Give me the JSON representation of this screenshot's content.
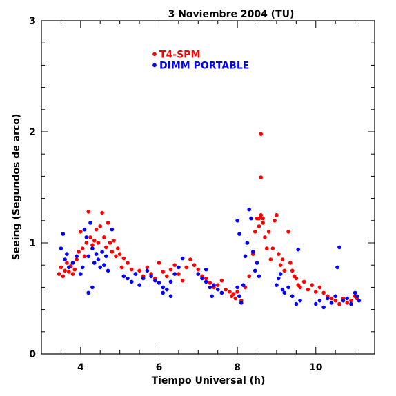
{
  "chart_data": {
    "type": "scatter",
    "title": "3 Noviembre 2004 (TU)",
    "xlabel": "Tiempo Universal (h)",
    "ylabel": "Seeing (Segundos de arco)",
    "xlim": [
      3.0,
      11.5
    ],
    "ylim": [
      0,
      3
    ],
    "xticks": [
      4,
      6,
      8,
      10
    ],
    "yticks": [
      0,
      1,
      2,
      3
    ],
    "tick_labels_x": [
      "4",
      "6",
      "8",
      "10"
    ],
    "tick_labels_y": [
      "0",
      "1",
      "2",
      "3"
    ],
    "grid": false,
    "legend_placement": "top-center",
    "series": [
      {
        "name": "T4-SPM",
        "color": "#ff0000",
        "points": [
          [
            3.45,
            0.72
          ],
          [
            3.5,
            0.78
          ],
          [
            3.55,
            0.7
          ],
          [
            3.6,
            0.75
          ],
          [
            3.65,
            0.82
          ],
          [
            3.7,
            0.74
          ],
          [
            3.75,
            0.79
          ],
          [
            3.8,
            0.72
          ],
          [
            3.85,
            0.76
          ],
          [
            3.9,
            0.85
          ],
          [
            3.95,
            0.92
          ],
          [
            4.0,
            1.1
          ],
          [
            4.05,
            0.95
          ],
          [
            4.1,
            0.88
          ],
          [
            4.15,
            1.0
          ],
          [
            4.2,
            1.28
          ],
          [
            4.25,
            1.05
          ],
          [
            4.3,
            0.98
          ],
          [
            4.35,
            1.02
          ],
          [
            4.4,
            1.12
          ],
          [
            4.45,
            1.0
          ],
          [
            4.5,
            1.15
          ],
          [
            4.55,
            1.27
          ],
          [
            4.6,
            1.05
          ],
          [
            4.65,
            0.96
          ],
          [
            4.7,
            1.18
          ],
          [
            4.75,
            1.0
          ],
          [
            4.8,
            0.92
          ],
          [
            4.85,
            1.02
          ],
          [
            4.9,
            0.88
          ],
          [
            4.95,
            0.95
          ],
          [
            5.0,
            0.9
          ],
          [
            5.05,
            0.78
          ],
          [
            5.1,
            0.86
          ],
          [
            5.2,
            0.82
          ],
          [
            5.3,
            0.76
          ],
          [
            5.4,
            0.72
          ],
          [
            5.5,
            0.75
          ],
          [
            5.6,
            0.7
          ],
          [
            5.7,
            0.78
          ],
          [
            5.8,
            0.72
          ],
          [
            5.9,
            0.68
          ],
          [
            6.0,
            0.82
          ],
          [
            6.1,
            0.74
          ],
          [
            6.2,
            0.7
          ],
          [
            6.3,
            0.76
          ],
          [
            6.4,
            0.8
          ],
          [
            6.5,
            0.72
          ],
          [
            6.6,
            0.66
          ],
          [
            6.7,
            0.78
          ],
          [
            6.8,
            0.85
          ],
          [
            6.9,
            0.8
          ],
          [
            7.0,
            0.76
          ],
          [
            7.1,
            0.7
          ],
          [
            7.2,
            0.68
          ],
          [
            7.3,
            0.64
          ],
          [
            7.4,
            0.6
          ],
          [
            7.5,
            0.62
          ],
          [
            7.6,
            0.66
          ],
          [
            7.7,
            0.58
          ],
          [
            7.8,
            0.56
          ],
          [
            7.85,
            0.52
          ],
          [
            7.9,
            0.54
          ],
          [
            7.95,
            0.5
          ],
          [
            8.0,
            0.56
          ],
          [
            8.05,
            0.52
          ],
          [
            8.1,
            0.48
          ],
          [
            8.2,
            0.6
          ],
          [
            8.3,
            0.7
          ],
          [
            8.4,
            0.9
          ],
          [
            8.45,
            1.1
          ],
          [
            8.5,
            1.22
          ],
          [
            8.55,
            1.15
          ],
          [
            8.6,
            1.25
          ],
          [
            8.65,
            1.18
          ],
          [
            8.7,
            1.05
          ],
          [
            8.75,
            0.95
          ],
          [
            8.8,
            1.1
          ],
          [
            8.85,
            0.85
          ],
          [
            8.9,
            0.95
          ],
          [
            8.95,
            1.2
          ],
          [
            9.0,
            1.25
          ],
          [
            9.05,
            0.9
          ],
          [
            9.1,
            0.8
          ],
          [
            9.15,
            0.85
          ],
          [
            9.2,
            0.75
          ],
          [
            9.3,
            1.1
          ],
          [
            9.35,
            0.82
          ],
          [
            9.4,
            0.75
          ],
          [
            9.45,
            0.7
          ],
          [
            9.5,
            0.68
          ],
          [
            9.55,
            0.62
          ],
          [
            9.6,
            0.6
          ],
          [
            9.7,
            0.65
          ],
          [
            9.8,
            0.58
          ],
          [
            9.9,
            0.62
          ],
          [
            10.0,
            0.56
          ],
          [
            10.1,
            0.6
          ],
          [
            10.2,
            0.55
          ],
          [
            10.3,
            0.52
          ],
          [
            10.4,
            0.5
          ],
          [
            10.5,
            0.48
          ],
          [
            10.6,
            0.45
          ],
          [
            10.7,
            0.5
          ],
          [
            10.8,
            0.46
          ],
          [
            10.9,
            0.48
          ],
          [
            11.0,
            0.52
          ],
          [
            11.05,
            0.5
          ],
          [
            8.6,
            1.98
          ],
          [
            8.6,
            1.59
          ],
          [
            8.55,
            1.22
          ],
          [
            8.65,
            1.22
          ]
        ]
      },
      {
        "name": "DIMM PORTABLE",
        "color": "#0000ff",
        "points": [
          [
            3.5,
            0.95
          ],
          [
            3.55,
            1.08
          ],
          [
            3.6,
            0.85
          ],
          [
            3.65,
            0.9
          ],
          [
            3.7,
            0.78
          ],
          [
            3.8,
            0.82
          ],
          [
            3.9,
            0.88
          ],
          [
            4.0,
            0.72
          ],
          [
            4.05,
            0.78
          ],
          [
            4.1,
            1.12
          ],
          [
            4.15,
            1.05
          ],
          [
            4.2,
            0.88
          ],
          [
            4.25,
            1.18
          ],
          [
            4.3,
            0.95
          ],
          [
            4.35,
            0.82
          ],
          [
            4.4,
            0.9
          ],
          [
            4.45,
            0.85
          ],
          [
            4.5,
            0.78
          ],
          [
            4.55,
            0.92
          ],
          [
            4.6,
            0.8
          ],
          [
            4.65,
            0.88
          ],
          [
            4.7,
            0.75
          ],
          [
            4.8,
            1.12
          ],
          [
            4.2,
            0.55
          ],
          [
            4.3,
            0.6
          ],
          [
            5.1,
            0.7
          ],
          [
            5.2,
            0.68
          ],
          [
            5.3,
            0.65
          ],
          [
            5.4,
            0.72
          ],
          [
            5.5,
            0.62
          ],
          [
            5.6,
            0.68
          ],
          [
            5.7,
            0.75
          ],
          [
            5.8,
            0.7
          ],
          [
            5.9,
            0.66
          ],
          [
            6.0,
            0.64
          ],
          [
            6.1,
            0.6
          ],
          [
            6.2,
            0.58
          ],
          [
            6.3,
            0.65
          ],
          [
            6.4,
            0.72
          ],
          [
            6.5,
            0.78
          ],
          [
            6.6,
            0.86
          ],
          [
            6.1,
            0.55
          ],
          [
            6.3,
            0.52
          ],
          [
            7.0,
            0.72
          ],
          [
            7.1,
            0.68
          ],
          [
            7.2,
            0.65
          ],
          [
            7.3,
            0.6
          ],
          [
            7.4,
            0.62
          ],
          [
            7.5,
            0.58
          ],
          [
            7.6,
            0.55
          ],
          [
            7.2,
            0.76
          ],
          [
            7.35,
            0.52
          ],
          [
            8.0,
            0.6
          ],
          [
            8.05,
            0.52
          ],
          [
            8.1,
            0.46
          ],
          [
            8.15,
            0.62
          ],
          [
            8.2,
            0.88
          ],
          [
            8.25,
            1.0
          ],
          [
            8.3,
            1.3
          ],
          [
            8.35,
            1.22
          ],
          [
            8.4,
            0.92
          ],
          [
            8.45,
            0.75
          ],
          [
            8.5,
            0.82
          ],
          [
            8.55,
            0.7
          ],
          [
            8.0,
            1.2
          ],
          [
            8.05,
            1.08
          ],
          [
            9.0,
            0.62
          ],
          [
            9.05,
            0.68
          ],
          [
            9.1,
            0.72
          ],
          [
            9.15,
            0.58
          ],
          [
            9.2,
            0.55
          ],
          [
            9.3,
            0.6
          ],
          [
            9.4,
            0.52
          ],
          [
            9.5,
            0.45
          ],
          [
            9.6,
            0.48
          ],
          [
            9.55,
            0.94
          ],
          [
            10.0,
            0.45
          ],
          [
            10.1,
            0.48
          ],
          [
            10.2,
            0.42
          ],
          [
            10.3,
            0.5
          ],
          [
            10.4,
            0.46
          ],
          [
            10.5,
            0.52
          ],
          [
            10.55,
            0.78
          ],
          [
            10.6,
            0.96
          ],
          [
            10.7,
            0.48
          ],
          [
            10.8,
            0.5
          ],
          [
            10.9,
            0.45
          ],
          [
            11.0,
            0.55
          ],
          [
            11.05,
            0.52
          ],
          [
            11.1,
            0.48
          ]
        ]
      }
    ]
  }
}
